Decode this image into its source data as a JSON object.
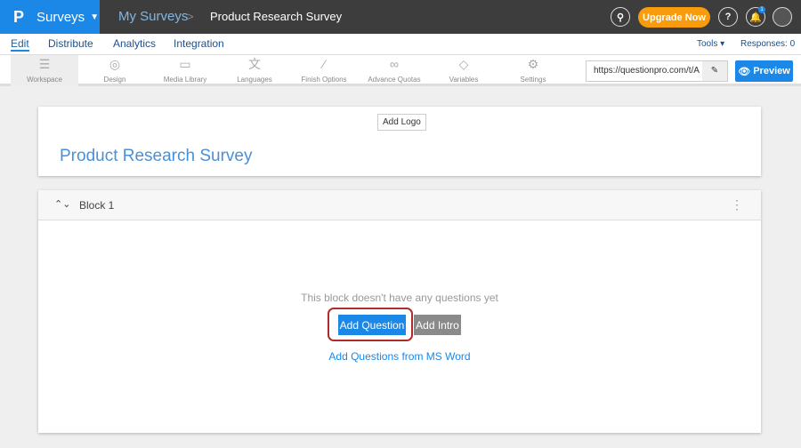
{
  "header": {
    "logo": "P",
    "product": "Surveys",
    "breadcrumb": [
      "My Surveys",
      "Product Research Survey"
    ],
    "upgrade_label": "Upgrade Now",
    "notification_count": "1",
    "accent": "#1b87e6"
  },
  "nav": {
    "tabs": [
      "Edit",
      "Distribute",
      "Analytics",
      "Integration"
    ],
    "active": "Edit",
    "tools_label": "Tools ▾",
    "responses": "Responses: 0"
  },
  "toolbar": {
    "items": [
      {
        "label": "Workspace",
        "icon": "list-icon"
      },
      {
        "label": "Design",
        "icon": "palette-icon"
      },
      {
        "label": "Media Library",
        "icon": "image-icon"
      },
      {
        "label": "Languages",
        "icon": "translate-icon"
      },
      {
        "label": "Finish Options",
        "icon": "magic-wand-icon"
      },
      {
        "label": "Advance Quotas",
        "icon": "link-icon"
      },
      {
        "label": "Variables",
        "icon": "tag-icon"
      },
      {
        "label": "Settings",
        "icon": "gear-icon"
      }
    ],
    "url": "https://questionpro.com/t/A",
    "preview_label": "Preview"
  },
  "survey": {
    "add_logo": "Add Logo",
    "title": "Product Research Survey"
  },
  "block": {
    "name": "Block 1",
    "empty_text": "This block doesn't have any questions yet",
    "add_question": "Add Question",
    "add_intro": "Add Intro",
    "add_from_word": "Add Questions from MS Word"
  }
}
